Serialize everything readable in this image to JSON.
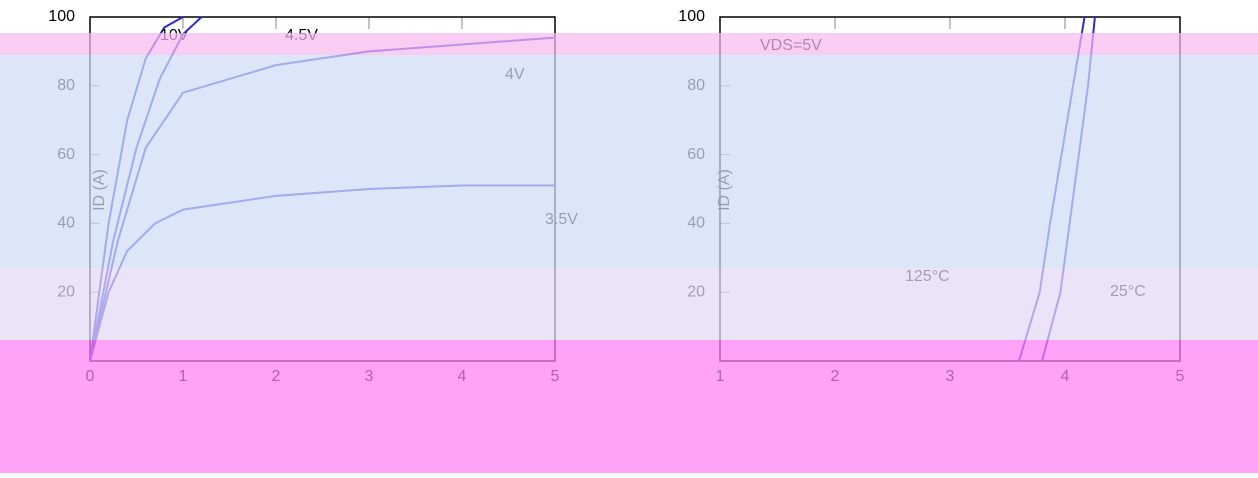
{
  "chart_data": [
    {
      "type": "line",
      "y_label": "ID (A)",
      "xlim": [
        0,
        5
      ],
      "xticks": [
        0,
        1,
        2,
        3,
        4,
        5
      ],
      "ylim": [
        0,
        100
      ],
      "yticks": [
        20,
        40,
        60,
        80,
        100
      ],
      "grid": true,
      "series": [
        {
          "name": "10V",
          "color": "#2b2bd6",
          "x": [
            0,
            0.2,
            0.4,
            0.6,
            0.8,
            1.0
          ],
          "values": [
            0,
            40,
            70,
            88,
            97,
            100
          ]
        },
        {
          "name": "4.5V",
          "color": "#2b2bd6",
          "x": [
            0,
            0.25,
            0.5,
            0.75,
            1.0,
            1.2
          ],
          "values": [
            0,
            35,
            62,
            82,
            95,
            100
          ]
        },
        {
          "name": "4V",
          "color": "#2b2bd6",
          "x": [
            0,
            0.3,
            0.6,
            1,
            2,
            3,
            4,
            5
          ],
          "values": [
            0,
            35,
            62,
            78,
            86,
            90,
            92,
            94
          ]
        },
        {
          "name": "3.5V",
          "color": "#2b2bd6",
          "x": [
            0,
            0.2,
            0.4,
            0.7,
            1,
            2,
            3,
            4,
            5
          ],
          "values": [
            0,
            20,
            32,
            40,
            44,
            48,
            50,
            51,
            51
          ]
        }
      ]
    },
    {
      "type": "line",
      "y_label": "ID (A)",
      "annotation": "VDS=5V",
      "xlim": [
        1,
        5
      ],
      "xticks": [
        1,
        2,
        3,
        4,
        5
      ],
      "ylim": [
        0,
        100
      ],
      "yticks": [
        20,
        40,
        60,
        80,
        100
      ],
      "grid": true,
      "series": [
        {
          "name": "125°C",
          "color": "#2b2bd6",
          "x": [
            3.6,
            3.78,
            3.87,
            3.97,
            4.07,
            4.17
          ],
          "values": [
            0,
            20,
            40,
            60,
            80,
            100
          ]
        },
        {
          "name": "25°C",
          "color": "#2b2bd6",
          "x": [
            3.8,
            3.96,
            4.04,
            4.12,
            4.2,
            4.26
          ],
          "values": [
            0,
            20,
            40,
            60,
            80,
            100
          ]
        }
      ]
    }
  ]
}
